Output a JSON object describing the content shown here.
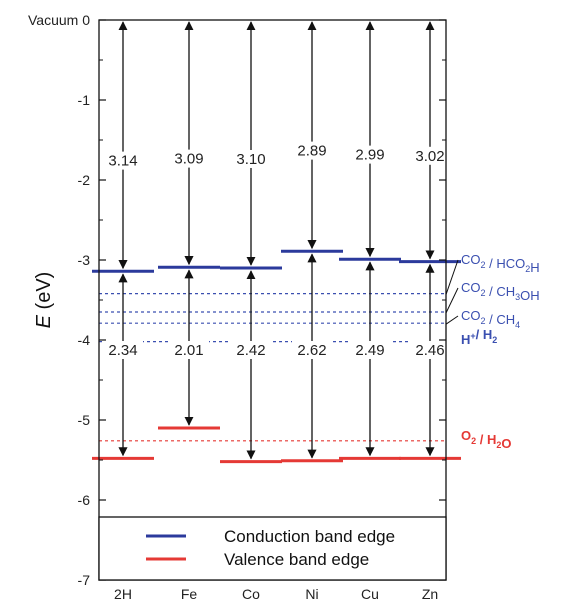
{
  "chart_data": {
    "type": "band-diagram",
    "ylabel_var": "E",
    "ylabel_unit": " (eV)",
    "top_tick_prefix": "Vacuum",
    "ylim": [
      -7,
      0
    ],
    "yticks": [
      "0",
      "-1",
      "-2",
      "-3",
      "-4",
      "-5",
      "-6",
      "-7"
    ],
    "categories": [
      "2H",
      "Fe",
      "Co",
      "Ni",
      "Cu",
      "Zn"
    ],
    "conduction_band_edge": [
      -3.14,
      -3.09,
      -3.1,
      -2.89,
      -2.99,
      -3.02
    ],
    "valence_band_edge": [
      -5.48,
      -5.1,
      -5.52,
      -5.51,
      -5.48,
      -5.48
    ],
    "vacuum_gap_labels": [
      "3.14",
      "3.09",
      "3.10",
      "2.89",
      "2.99",
      "3.02"
    ],
    "band_gap_labels": [
      "2.34",
      "2.01",
      "2.42",
      "2.62",
      "2.49",
      "2.46"
    ],
    "reference_levels": [
      {
        "label": "CO",
        "sub1": "2",
        "mid": " / HCO",
        "sub2": "2",
        "tail": "H",
        "value": -3.42,
        "color": "#3a4fb0"
      },
      {
        "label": "CO",
        "sub1": "2",
        "mid": " / CH",
        "sub2": "3",
        "tail": "OH",
        "value": -3.65,
        "color": "#3a4fb0"
      },
      {
        "label": "CO",
        "sub1": "2",
        "mid": " / CH",
        "sub2": "4",
        "tail": "",
        "value": -3.79,
        "color": "#3a4fb0"
      },
      {
        "label": "H",
        "sup1": "+",
        "mid": "/ H",
        "sub2": "2",
        "tail": "",
        "value": -4.02,
        "color": "#3a4fb0",
        "bold": true
      },
      {
        "label": "O",
        "sub1": "2",
        "mid": " / H",
        "sub2": "2",
        "tail": "O",
        "value": -5.26,
        "color": "#e53935",
        "bold": true
      }
    ],
    "legend": [
      {
        "label": "Conduction band edge",
        "color": "#2b3a9c"
      },
      {
        "label": "Valence band edge",
        "color": "#e53935"
      }
    ],
    "colors": {
      "conduction": "#2b3a9c",
      "valence": "#e53935",
      "reference_blue": "#3a4fb0",
      "reference_red": "#e53935"
    }
  }
}
